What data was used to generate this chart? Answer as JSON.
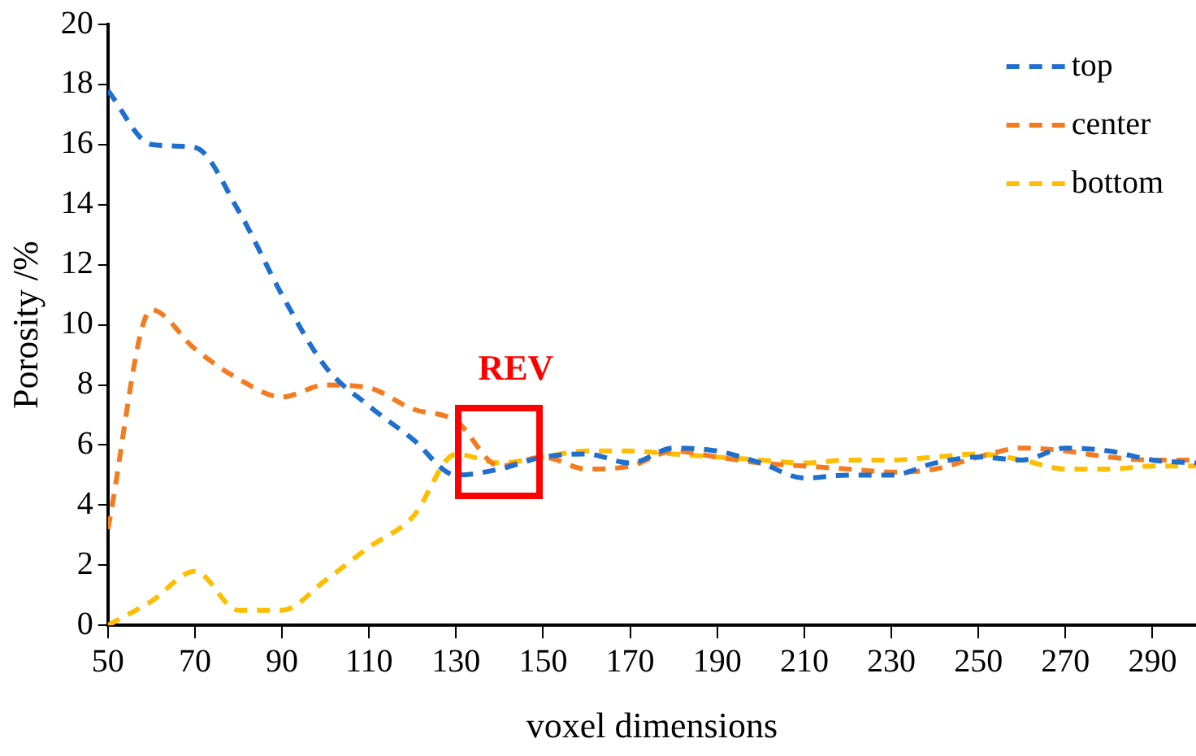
{
  "chart_data": {
    "type": "line",
    "xlabel": "voxel dimensions",
    "ylabel": "Porosity /%",
    "x": [
      50,
      60,
      70,
      80,
      90,
      100,
      110,
      120,
      130,
      140,
      150,
      160,
      170,
      180,
      190,
      200,
      210,
      220,
      230,
      240,
      250,
      260,
      270,
      280,
      290,
      300
    ],
    "series": [
      {
        "name": "top",
        "color": "#1f6fcf",
        "values": [
          17.8,
          16,
          15.9,
          13.8,
          11,
          8.6,
          7.3,
          6.2,
          5.0,
          5.2,
          5.6,
          5.7,
          5.4,
          5.9,
          5.8,
          5.4,
          4.9,
          5.0,
          5.0,
          5.4,
          5.6,
          5.5,
          5.9,
          5.8,
          5.5,
          5.4
        ]
      },
      {
        "name": "center",
        "color": "#f47c20",
        "values": [
          3.2,
          10.5,
          9.2,
          8.2,
          7.6,
          8.0,
          7.9,
          7.2,
          6.8,
          5.3,
          5.6,
          5.2,
          5.3,
          5.8,
          5.6,
          5.4,
          5.3,
          5.2,
          5.1,
          5.2,
          5.6,
          5.9,
          5.8,
          5.6,
          5.5,
          5.5
        ]
      },
      {
        "name": "bottom",
        "color": "#ffbe00",
        "values": [
          0,
          0.8,
          1.8,
          0.5,
          0.5,
          1.5,
          2.6,
          3.6,
          5.7,
          5.4,
          5.6,
          5.8,
          5.8,
          5.7,
          5.6,
          5.5,
          5.4,
          5.5,
          5.5,
          5.6,
          5.7,
          5.5,
          5.2,
          5.2,
          5.3,
          5.3
        ]
      }
    ],
    "xlim": [
      50,
      300
    ],
    "xticks": [
      50,
      70,
      90,
      110,
      130,
      150,
      170,
      190,
      210,
      230,
      250,
      270,
      290
    ],
    "ylim": [
      0,
      20
    ],
    "yticks": [
      0,
      2,
      4,
      6,
      8,
      10,
      12,
      14,
      16,
      18,
      20
    ],
    "annotations": [
      {
        "text": "REV",
        "x": 140,
        "y": 5.5
      }
    ],
    "legend": "top right",
    "line_style": "dashed",
    "marker": "none",
    "grid": false
  }
}
